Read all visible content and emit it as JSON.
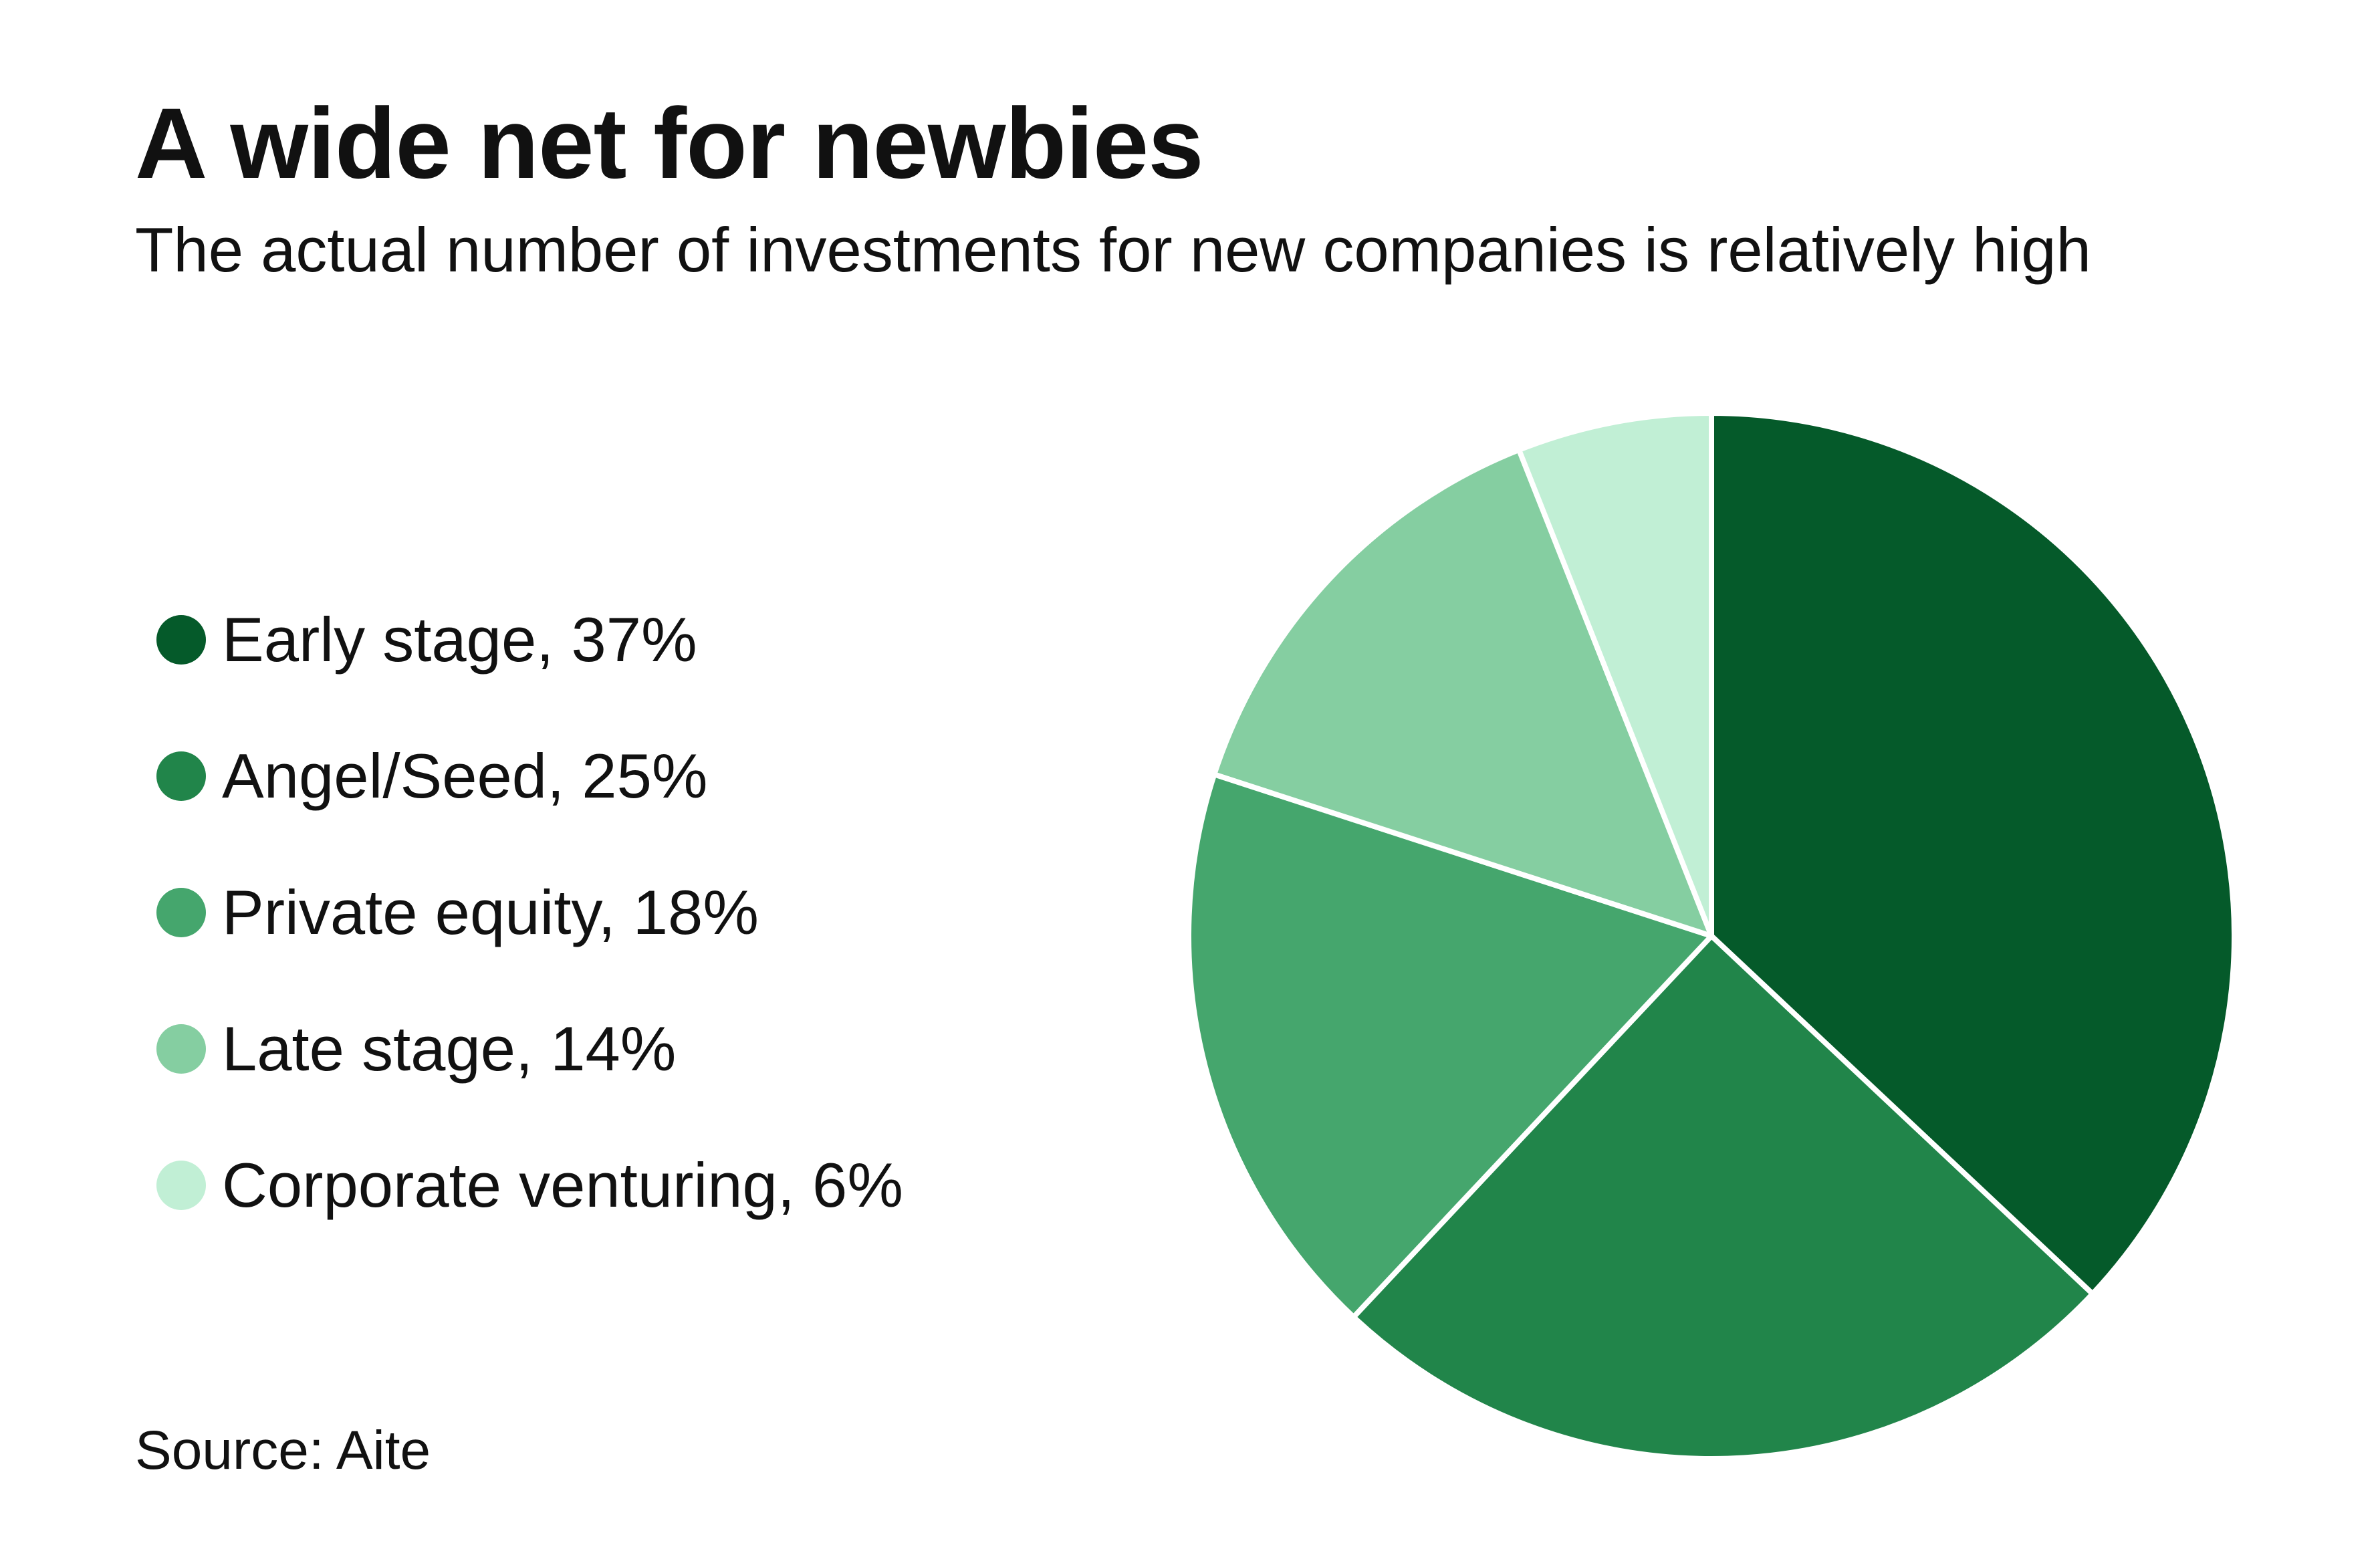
{
  "header": {
    "title": "A wide net for newbies",
    "subtitle": "The actual number of investments for new companies is relatively high"
  },
  "legend": {
    "items": [
      {
        "label": "Early stage, 37%",
        "color": "#055A2A"
      },
      {
        "label": "Angel/Seed, 25%",
        "color": "#21854A"
      },
      {
        "label": "Private equity, 18%",
        "color": "#45A66D"
      },
      {
        "label": "Late stage, 14%",
        "color": "#85CEA1"
      },
      {
        "label": "Corporate venturing, 6%",
        "color": "#C1EFD5"
      }
    ]
  },
  "footer": {
    "source": "Source: Aite"
  },
  "chart_data": {
    "type": "pie",
    "title": "A wide net for newbies",
    "subtitle": "The actual number of investments for new companies is relatively high",
    "start_angle": "12 o'clock, clockwise",
    "legend_position": "left",
    "slices": [
      {
        "label": "Early stage",
        "value": 37,
        "color": "#055A2A"
      },
      {
        "label": "Angel/Seed",
        "value": 25,
        "color": "#21854A"
      },
      {
        "label": "Private equity",
        "value": 18,
        "color": "#45A66D"
      },
      {
        "label": "Late stage",
        "value": 14,
        "color": "#85CEA1"
      },
      {
        "label": "Corporate venturing",
        "value": 6,
        "color": "#C1EFD5"
      }
    ],
    "unit": "%"
  }
}
